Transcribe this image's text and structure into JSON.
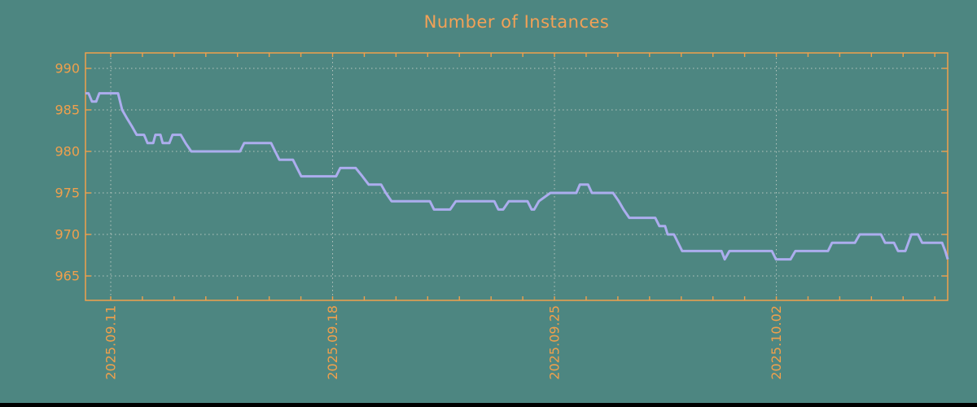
{
  "page": {
    "background_color": "#4d8681",
    "bottom_bar_color": "#000000"
  },
  "chart_data": {
    "type": "line",
    "title": "Number of Instances",
    "legend": "none",
    "grid": {
      "style": "dotted",
      "color": "#c9d0ca"
    },
    "axis_color": "#f0a04c",
    "label_color": "#f0a04c",
    "x_axis": {
      "tick_labels": [
        "2025.09.11",
        "2025.09.18",
        "2025.09.25",
        "2025.10.02"
      ],
      "major_tick_days": [
        0,
        7,
        14,
        21
      ],
      "minor_tick_interval_days": 1,
      "range_days": [
        -0.8,
        26.42
      ],
      "labels_rotated_90": true
    },
    "y_axis": {
      "tick_labels": [
        "990",
        "985",
        "980",
        "975",
        "970",
        "965"
      ],
      "tick_values": [
        990,
        985,
        980,
        975,
        970,
        965
      ],
      "range": [
        962.0,
        991.8
      ]
    },
    "series": [
      {
        "name": "Number of Instances",
        "color": "#acadee",
        "line_width": 3,
        "points": [
          [
            -0.8,
            987
          ],
          [
            -0.7,
            987
          ],
          [
            -0.59,
            986
          ],
          [
            -0.46,
            986
          ],
          [
            -0.36,
            987
          ],
          [
            0.23,
            987
          ],
          [
            0.36,
            985
          ],
          [
            0.51,
            984
          ],
          [
            0.67,
            983
          ],
          [
            0.82,
            982
          ],
          [
            1.05,
            982
          ],
          [
            1.16,
            981
          ],
          [
            1.34,
            981
          ],
          [
            1.41,
            982
          ],
          [
            1.57,
            982
          ],
          [
            1.64,
            981
          ],
          [
            1.85,
            981
          ],
          [
            1.95,
            982
          ],
          [
            2.21,
            982
          ],
          [
            2.36,
            981
          ],
          [
            2.54,
            980
          ],
          [
            4.08,
            980
          ],
          [
            4.21,
            981
          ],
          [
            5.06,
            981
          ],
          [
            5.19,
            980
          ],
          [
            5.32,
            979
          ],
          [
            5.75,
            979
          ],
          [
            5.88,
            978
          ],
          [
            6.01,
            977
          ],
          [
            7.11,
            977
          ],
          [
            7.24,
            978
          ],
          [
            7.73,
            978
          ],
          [
            7.94,
            977
          ],
          [
            8.14,
            976
          ],
          [
            8.53,
            976
          ],
          [
            8.68,
            975
          ],
          [
            8.86,
            974
          ],
          [
            10.07,
            974
          ],
          [
            10.2,
            973
          ],
          [
            10.71,
            973
          ],
          [
            10.89,
            974
          ],
          [
            12.1,
            974
          ],
          [
            12.23,
            973
          ],
          [
            12.38,
            973
          ],
          [
            12.56,
            974
          ],
          [
            13.15,
            974
          ],
          [
            13.28,
            973
          ],
          [
            13.36,
            973
          ],
          [
            13.51,
            974
          ],
          [
            13.87,
            975
          ],
          [
            14.69,
            975
          ],
          [
            14.8,
            976
          ],
          [
            15.06,
            976
          ],
          [
            15.18,
            975
          ],
          [
            15.85,
            975
          ],
          [
            16.03,
            974
          ],
          [
            16.18,
            973
          ],
          [
            16.36,
            972
          ],
          [
            17.18,
            972
          ],
          [
            17.31,
            971
          ],
          [
            17.49,
            971
          ],
          [
            17.57,
            970
          ],
          [
            17.77,
            970
          ],
          [
            17.9,
            969
          ],
          [
            18.03,
            968
          ],
          [
            19.27,
            968
          ],
          [
            19.37,
            967
          ],
          [
            19.52,
            968
          ],
          [
            20.86,
            968
          ],
          [
            20.99,
            967
          ],
          [
            21.45,
            967
          ],
          [
            21.6,
            968
          ],
          [
            22.63,
            968
          ],
          [
            22.76,
            969
          ],
          [
            23.48,
            969
          ],
          [
            23.63,
            970
          ],
          [
            24.3,
            970
          ],
          [
            24.43,
            969
          ],
          [
            24.71,
            969
          ],
          [
            24.84,
            968
          ],
          [
            25.07,
            968
          ],
          [
            25.26,
            970
          ],
          [
            25.47,
            970
          ],
          [
            25.6,
            969
          ],
          [
            26.23,
            969
          ],
          [
            26.33,
            968
          ],
          [
            26.41,
            967
          ]
        ]
      }
    ]
  }
}
